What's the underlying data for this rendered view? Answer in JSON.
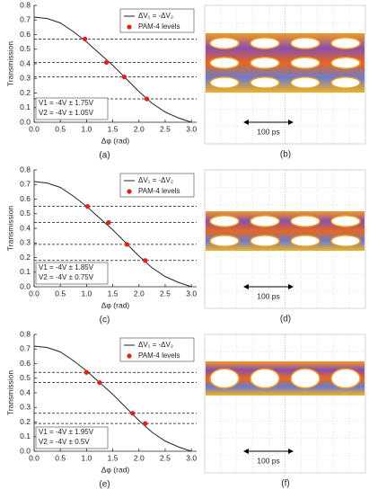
{
  "chart_data": [
    {
      "type": "line",
      "panel_label": "(a)",
      "xlabel": "Δφ (rad)",
      "ylabel": "Transmission",
      "xlim": [
        0,
        3.1
      ],
      "ylim": [
        0,
        0.8
      ],
      "xticks": [
        {
          "value": 0,
          "label": "0.0"
        },
        {
          "value": 0.5,
          "label": "0.5"
        },
        {
          "value": 1,
          "label": "1.0"
        },
        {
          "value": 1.5,
          "label": "1.5"
        },
        {
          "value": 2,
          "label": "2.0"
        },
        {
          "value": 2.5,
          "label": "2.5"
        },
        {
          "value": 3,
          "label": "3.0"
        }
      ],
      "yticks": [
        {
          "value": 0,
          "label": "0.0"
        },
        {
          "value": 0.1,
          "label": "0.1"
        },
        {
          "value": 0.2,
          "label": "0.2"
        },
        {
          "value": 0.3,
          "label": "0.3"
        },
        {
          "value": 0.4,
          "label": "0.4"
        },
        {
          "value": 0.5,
          "label": "0.5"
        },
        {
          "value": 0.6,
          "label": "0.6"
        },
        {
          "value": 0.7,
          "label": "0.7"
        },
        {
          "value": 0.8,
          "label": "0.8"
        }
      ],
      "legend": "upper right",
      "series": [
        {
          "name": "ΔV₁ = -ΔV₂",
          "type": "line",
          "color": "#222222",
          "x": [
            0,
            0.25,
            0.5,
            0.75,
            1,
            1.25,
            1.5,
            1.75,
            2,
            2.25,
            2.5,
            2.75,
            3
          ],
          "values": [
            0.72,
            0.71,
            0.68,
            0.62,
            0.55,
            0.47,
            0.39,
            0.3,
            0.21,
            0.13,
            0.07,
            0.03,
            0.0
          ]
        },
        {
          "name": "PAM-4 levels",
          "type": "scatter",
          "color": "#e0201b",
          "x": [
            0.97,
            1.38,
            1.72,
            2.15
          ],
          "values": [
            0.57,
            0.41,
            0.31,
            0.16
          ]
        }
      ],
      "annotations": [
        "V1 = -4V ± 1.75V",
        "V2 = -4V ± 1.05V"
      ]
    },
    {
      "type": "line",
      "panel_label": "(c)",
      "xlabel": "Δφ (rad)",
      "ylabel": "Transmission",
      "xlim": [
        0,
        3.1
      ],
      "ylim": [
        0,
        0.8
      ],
      "xticks": [
        {
          "value": 0,
          "label": "0.0"
        },
        {
          "value": 0.5,
          "label": "0.5"
        },
        {
          "value": 1,
          "label": "1.0"
        },
        {
          "value": 1.5,
          "label": "1.5"
        },
        {
          "value": 2,
          "label": "2.0"
        },
        {
          "value": 2.5,
          "label": "2.5"
        },
        {
          "value": 3,
          "label": "3.0"
        }
      ],
      "yticks": [
        {
          "value": 0,
          "label": "0.0"
        },
        {
          "value": 0.1,
          "label": "0.1"
        },
        {
          "value": 0.2,
          "label": "0.2"
        },
        {
          "value": 0.3,
          "label": "0.3"
        },
        {
          "value": 0.4,
          "label": "0.4"
        },
        {
          "value": 0.5,
          "label": "0.5"
        },
        {
          "value": 0.6,
          "label": "0.6"
        },
        {
          "value": 0.7,
          "label": "0.7"
        },
        {
          "value": 0.8,
          "label": "0.8"
        }
      ],
      "legend": "upper right",
      "series": [
        {
          "name": "ΔV₁ = -ΔV₂",
          "type": "line",
          "color": "#222222",
          "x": [
            0,
            0.25,
            0.5,
            0.75,
            1,
            1.25,
            1.5,
            1.75,
            2,
            2.25,
            2.5,
            2.75,
            3
          ],
          "values": [
            0.72,
            0.71,
            0.68,
            0.62,
            0.55,
            0.47,
            0.39,
            0.3,
            0.21,
            0.13,
            0.07,
            0.03,
            0.0
          ]
        },
        {
          "name": "PAM-4 levels",
          "type": "scatter",
          "color": "#e0201b",
          "x": [
            1.02,
            1.42,
            1.77,
            2.12
          ],
          "values": [
            0.55,
            0.44,
            0.29,
            0.18
          ]
        }
      ],
      "annotations": [
        "V1 = -4V ± 1.85V",
        "V2 = -4V ± 0.75V"
      ]
    },
    {
      "type": "line",
      "panel_label": "(e)",
      "xlabel": "Δφ (rad)",
      "ylabel": "Transmission",
      "xlim": [
        0,
        3.1
      ],
      "ylim": [
        0,
        0.8
      ],
      "xticks": [
        {
          "value": 0,
          "label": "0.0"
        },
        {
          "value": 0.5,
          "label": "0.5"
        },
        {
          "value": 1,
          "label": "1.0"
        },
        {
          "value": 1.5,
          "label": "1.5"
        },
        {
          "value": 2,
          "label": "2.0"
        },
        {
          "value": 2.5,
          "label": "2.5"
        },
        {
          "value": 3,
          "label": "3.0"
        }
      ],
      "yticks": [
        {
          "value": 0,
          "label": "0.0"
        },
        {
          "value": 0.1,
          "label": "0.1"
        },
        {
          "value": 0.2,
          "label": "0.2"
        },
        {
          "value": 0.3,
          "label": "0.3"
        },
        {
          "value": 0.4,
          "label": "0.4"
        },
        {
          "value": 0.5,
          "label": "0.5"
        },
        {
          "value": 0.6,
          "label": "0.6"
        },
        {
          "value": 0.7,
          "label": "0.7"
        },
        {
          "value": 0.8,
          "label": "0.8"
        }
      ],
      "legend": "upper right",
      "series": [
        {
          "name": "ΔV₁ = -ΔV₂",
          "type": "line",
          "color": "#222222",
          "x": [
            0,
            0.25,
            0.5,
            0.75,
            1,
            1.25,
            1.5,
            1.75,
            2,
            2.25,
            2.5,
            2.75,
            3
          ],
          "values": [
            0.72,
            0.71,
            0.68,
            0.62,
            0.55,
            0.47,
            0.39,
            0.3,
            0.21,
            0.13,
            0.07,
            0.03,
            0.0
          ]
        },
        {
          "name": "PAM-4 levels",
          "type": "scatter",
          "color": "#e0201b",
          "x": [
            1.0,
            1.25,
            1.88,
            2.12
          ],
          "values": [
            0.54,
            0.47,
            0.26,
            0.19
          ]
        }
      ],
      "annotations": [
        "V1 = -4V ± 1.95V",
        "V2 = -4V ± 0.5V"
      ]
    }
  ],
  "eye_diagrams": [
    {
      "panel_label": "(b)",
      "scale_label": "100 ps"
    },
    {
      "panel_label": "(d)",
      "scale_label": "100 ps"
    },
    {
      "panel_label": "(f)",
      "scale_label": "100 ps"
    }
  ]
}
